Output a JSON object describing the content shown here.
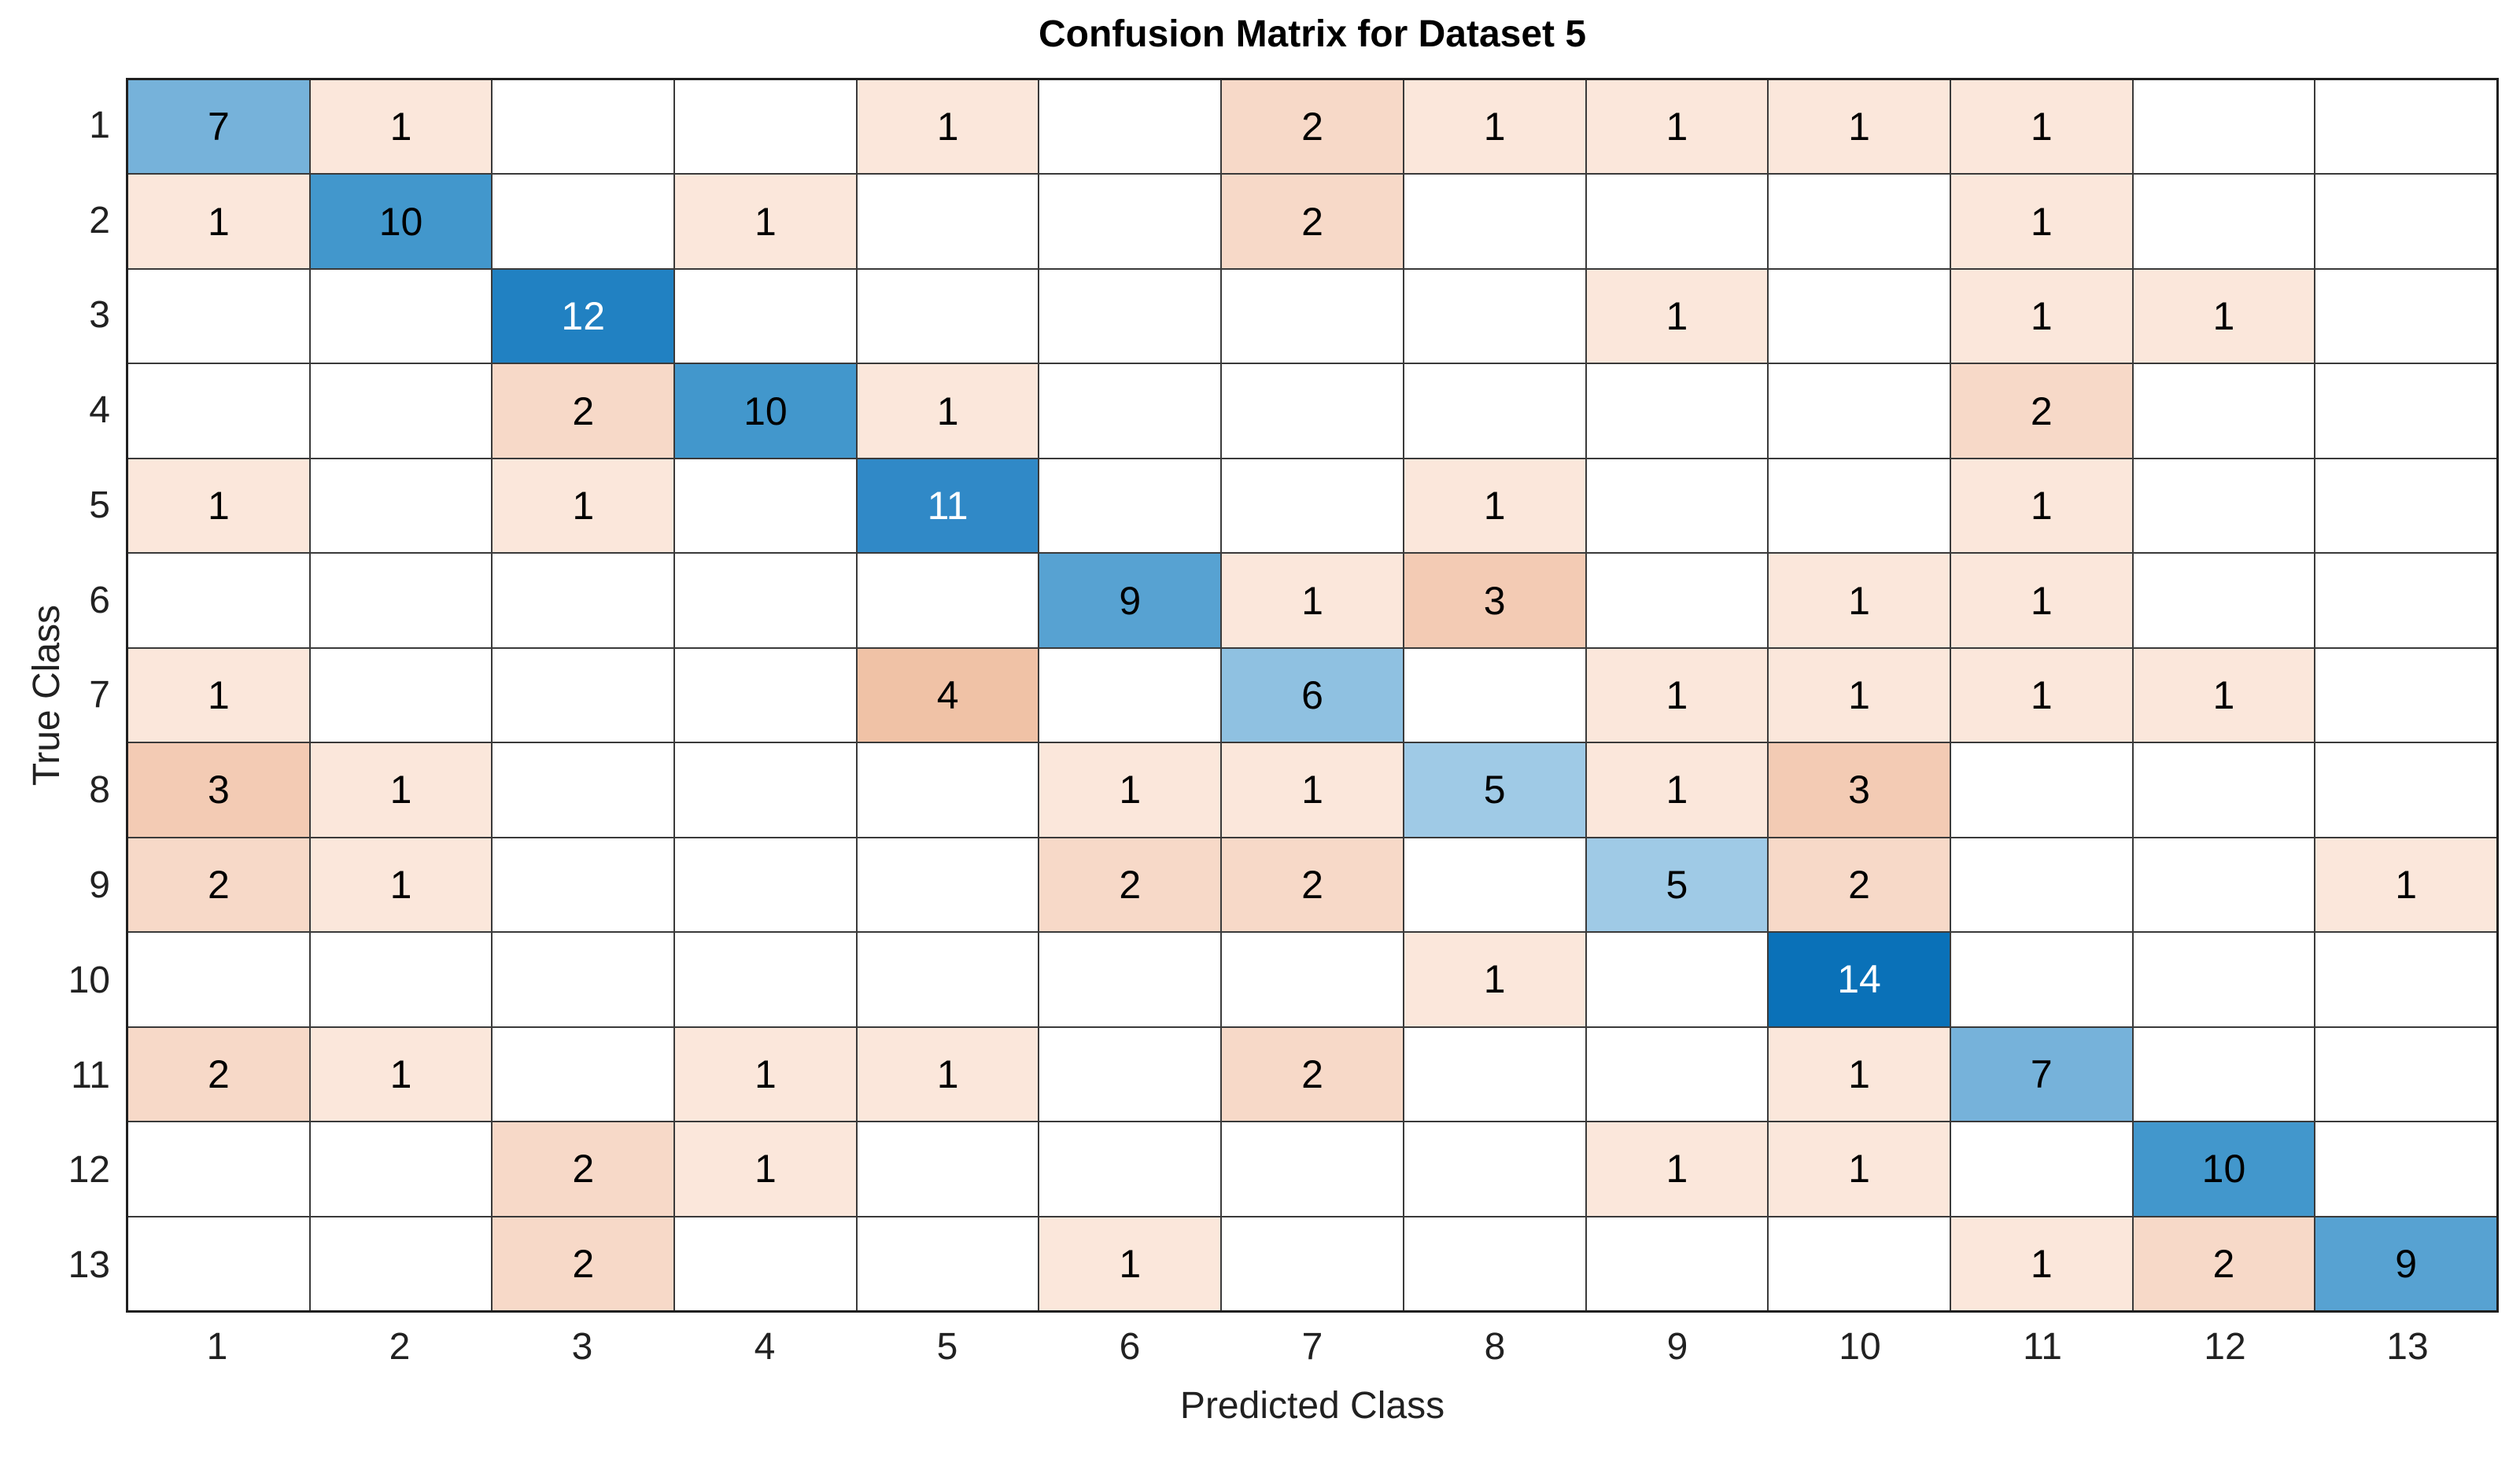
{
  "chart_data": {
    "type": "heatmap",
    "subtype": "confusion-matrix",
    "title": "Confusion Matrix for Dataset 5",
    "xlabel": "Predicted Class",
    "ylabel": "True Class",
    "x_categories": [
      "1",
      "2",
      "3",
      "4",
      "5",
      "6",
      "7",
      "8",
      "9",
      "10",
      "11",
      "12",
      "13"
    ],
    "y_categories": [
      "1",
      "2",
      "3",
      "4",
      "5",
      "6",
      "7",
      "8",
      "9",
      "10",
      "11",
      "12",
      "13"
    ],
    "matrix": [
      [
        7,
        1,
        0,
        0,
        1,
        0,
        2,
        1,
        1,
        1,
        1,
        0,
        0
      ],
      [
        1,
        10,
        0,
        1,
        0,
        0,
        2,
        0,
        0,
        0,
        1,
        0,
        0
      ],
      [
        0,
        0,
        12,
        0,
        0,
        0,
        0,
        0,
        1,
        0,
        1,
        1,
        0
      ],
      [
        0,
        0,
        2,
        10,
        1,
        0,
        0,
        0,
        0,
        0,
        2,
        0,
        0
      ],
      [
        1,
        0,
        1,
        0,
        11,
        0,
        0,
        1,
        0,
        0,
        1,
        0,
        0
      ],
      [
        0,
        0,
        0,
        0,
        0,
        9,
        1,
        3,
        0,
        1,
        1,
        0,
        0
      ],
      [
        1,
        0,
        0,
        0,
        4,
        0,
        6,
        0,
        1,
        1,
        1,
        1,
        0
      ],
      [
        3,
        1,
        0,
        0,
        0,
        1,
        1,
        5,
        1,
        3,
        0,
        0,
        0
      ],
      [
        2,
        1,
        0,
        0,
        0,
        2,
        2,
        0,
        5,
        2,
        0,
        0,
        1
      ],
      [
        0,
        0,
        0,
        0,
        0,
        0,
        0,
        1,
        0,
        14,
        0,
        0,
        0
      ],
      [
        2,
        1,
        0,
        1,
        1,
        0,
        2,
        0,
        0,
        1,
        7,
        0,
        0
      ],
      [
        0,
        0,
        2,
        1,
        0,
        0,
        0,
        0,
        1,
        1,
        0,
        10,
        0
      ],
      [
        0,
        0,
        2,
        0,
        0,
        1,
        0,
        0,
        0,
        0,
        1,
        2,
        9
      ]
    ],
    "empty_cell_display": "",
    "legend_position": "none",
    "grid": true,
    "colors": {
      "diagonal_base": "#0072BD",
      "off_diagonal_base": "#D95319",
      "diagonal_scale": {
        "5": "#9FCAE6",
        "6": "#8FC1E1",
        "7": "#76B2DA",
        "9": "#57A2D2",
        "10": "#4297CC",
        "11": "#3089C7",
        "12": "#2181C2",
        "14": "#0A71B8"
      },
      "off_diagonal_scale": {
        "1": "#FBE7DB",
        "2": "#F7D9C8",
        "3": "#F3CBB4",
        "4": "#F0C2A6"
      },
      "white_text_values": [
        11,
        12,
        14
      ],
      "empty_cell": "#FFFFFF",
      "grid_line": "#3A3A3A",
      "outer_border": "#1F1F1F",
      "cell_text": "#000000",
      "cell_text_on_dark": "#FFFFFF",
      "axis_text": "#212121",
      "title_text": "#000000"
    }
  }
}
